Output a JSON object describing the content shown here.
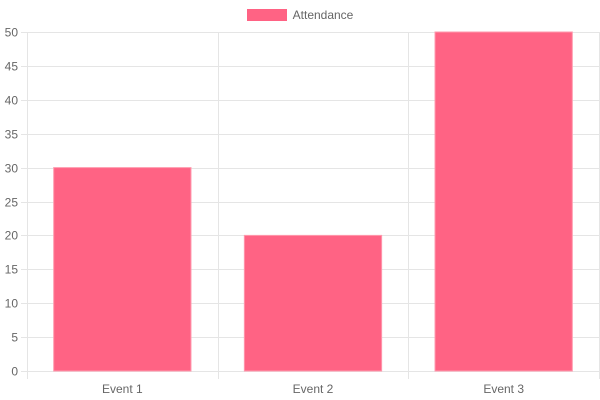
{
  "colors": {
    "bar_fill": "#ff6384",
    "bar_border": "#ff99ad",
    "grid": "#e5e5e5",
    "tick_text": "#666666"
  },
  "chart_data": {
    "type": "bar",
    "categories": [
      "Event 1",
      "Event 2",
      "Event 3"
    ],
    "series": [
      {
        "name": "Attendance",
        "values": [
          30,
          20,
          50
        ]
      }
    ],
    "title": "",
    "xlabel": "",
    "ylabel": "",
    "ylim": [
      0,
      50
    ],
    "yticks": [
      0,
      5,
      10,
      15,
      20,
      25,
      30,
      35,
      40,
      45,
      50
    ],
    "grid": true,
    "legend_position": "top-center"
  }
}
